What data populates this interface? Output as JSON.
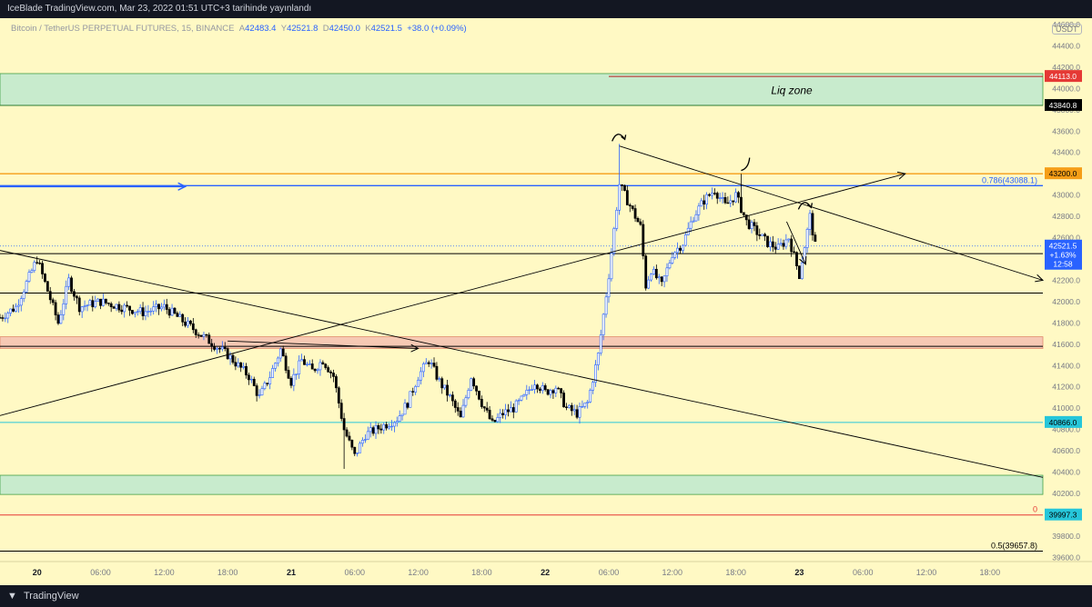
{
  "header": {
    "publisher": "IceBlade TradingView.com, Mar 23, 2022 01:51 UTC+3 tarihinde yayınlandı"
  },
  "legend": {
    "symbol": "Bitcoin / TetherUS PERPETUAL FUTURES, 15, BINANCE",
    "o_label": "A",
    "o": "42483.4",
    "h_label": "Y",
    "h": "42521.8",
    "l_label": "D",
    "l": "42450.0",
    "c_label": "K",
    "c": "42521.5",
    "change": "+38.0 (+0.09%)"
  },
  "currency": "USDT",
  "footer": {
    "brand": "TradingView"
  },
  "colors": {
    "background": "#fff9c4",
    "candle": "#2962ff",
    "green_zone": "#c8ebcd",
    "red_zone": "#f6c9b4",
    "orange_line": "#f59d17",
    "blue_line": "#2962ff",
    "red_line": "#e53935",
    "cyan_line": "#26c6da"
  },
  "chart_data": {
    "type": "candlestick",
    "symbol": "BTCUSDT Perpetual",
    "interval": "15",
    "y_range": [
      39560,
      44660
    ],
    "yticks": [
      39600,
      39800,
      40000,
      40200,
      40400,
      40600,
      40800,
      41000,
      41200,
      41400,
      41600,
      41800,
      42000,
      42200,
      42400,
      42600,
      42800,
      43000,
      43200,
      43400,
      43600,
      43800,
      44000,
      44200,
      44400,
      44600
    ],
    "x_ticks": [
      {
        "label": "20",
        "t": 0
      },
      {
        "label": "06:00",
        "t": 6
      },
      {
        "label": "12:00",
        "t": 12
      },
      {
        "label": "18:00",
        "t": 18
      },
      {
        "label": "21",
        "t": 24
      },
      {
        "label": "06:00",
        "t": 30
      },
      {
        "label": "12:00",
        "t": 36
      },
      {
        "label": "18:00",
        "t": 42
      },
      {
        "label": "22",
        "t": 48
      },
      {
        "label": "06:00",
        "t": 54
      },
      {
        "label": "12:00",
        "t": 60
      },
      {
        "label": "18:00",
        "t": 66
      },
      {
        "label": "23",
        "t": 72
      },
      {
        "label": "06:00",
        "t": 78
      },
      {
        "label": "12:00",
        "t": 84
      },
      {
        "label": "18:00",
        "t": 90
      }
    ],
    "x_range": [
      -3.5,
      95
    ],
    "last_bar_t": 73.5,
    "price_path": [
      [
        -3.5,
        41850
      ],
      [
        -2,
        41950
      ],
      [
        0,
        42400
      ],
      [
        1,
        42100
      ],
      [
        2,
        41800
      ],
      [
        3,
        42200
      ],
      [
        4,
        41950
      ],
      [
        6,
        42000
      ],
      [
        8,
        41950
      ],
      [
        10,
        41900
      ],
      [
        12,
        41950
      ],
      [
        14,
        41800
      ],
      [
        16,
        41650
      ],
      [
        18,
        41500
      ],
      [
        20,
        41300
      ],
      [
        21,
        41100
      ],
      [
        22,
        41300
      ],
      [
        23,
        41550
      ],
      [
        24,
        41250
      ],
      [
        25,
        41450
      ],
      [
        26,
        41350
      ],
      [
        27,
        41450
      ],
      [
        28,
        41300
      ],
      [
        29,
        40800
      ],
      [
        30,
        40550
      ],
      [
        31,
        40750
      ],
      [
        32,
        40800
      ],
      [
        33,
        40850
      ],
      [
        34,
        40900
      ],
      [
        35,
        41050
      ],
      [
        36,
        41300
      ],
      [
        37,
        41450
      ],
      [
        38,
        41250
      ],
      [
        39,
        41100
      ],
      [
        40,
        40900
      ],
      [
        41,
        41300
      ],
      [
        42,
        41050
      ],
      [
        43,
        40850
      ],
      [
        44,
        40950
      ],
      [
        45,
        41000
      ],
      [
        46,
        41100
      ],
      [
        47,
        41250
      ],
      [
        48,
        41150
      ],
      [
        49,
        41200
      ],
      [
        50,
        41000
      ],
      [
        51,
        40950
      ],
      [
        52,
        41050
      ],
      [
        53,
        41500
      ],
      [
        54,
        42250
      ],
      [
        55,
        43100
      ],
      [
        56,
        42900
      ],
      [
        57,
        42700
      ],
      [
        57.5,
        42150
      ],
      [
        58,
        42300
      ],
      [
        59,
        42150
      ],
      [
        60,
        42450
      ],
      [
        61,
        42550
      ],
      [
        62,
        42800
      ],
      [
        63,
        42950
      ],
      [
        64,
        43050
      ],
      [
        65,
        42900
      ],
      [
        66,
        43000
      ],
      [
        67,
        42750
      ],
      [
        68,
        42650
      ],
      [
        69,
        42550
      ],
      [
        70,
        42500
      ],
      [
        71,
        42600
      ],
      [
        72,
        42250
      ],
      [
        73,
        42800
      ],
      [
        73.5,
        42521.5
      ]
    ],
    "candles_note_events": [
      {
        "t": 29,
        "low": 40430
      },
      {
        "t": 55,
        "high": 43480
      },
      {
        "t": 66.5,
        "high": 43200
      },
      {
        "t": 72,
        "low": 42230
      }
    ],
    "zones": [
      {
        "kind": "green",
        "from": 43840.8,
        "to": 44140
      },
      {
        "kind": "salmon",
        "from": 41560,
        "to": 41670
      },
      {
        "kind": "green",
        "from": 40190,
        "to": 40370
      }
    ],
    "horizontal_lines": [
      {
        "price": 44113.0,
        "color": "#b71c1c",
        "from_t": 54,
        "label": "44113.0",
        "label_bg": "#e53935"
      },
      {
        "price": 43840.8,
        "color": "#2e7d32",
        "label": "43840.8",
        "label_bg": "#000000"
      },
      {
        "price": 43200.0,
        "color": "#f59d17",
        "label": "43200.0",
        "label_bg": "#f59d17",
        "label_fg": "#000000"
      },
      {
        "price": 43088.1,
        "color": "#2962ff",
        "fib_text": "0.786(43088.1)"
      },
      {
        "price": 42450,
        "color": "#000000"
      },
      {
        "price": 42080,
        "color": "#000000"
      },
      {
        "price": 41580,
        "color": "#000000"
      },
      {
        "price": 40866.0,
        "color": "#26c6da",
        "label": "40866.0",
        "label_bg": "#26c6da",
        "label_fg": "#000000"
      },
      {
        "price": 39997.3,
        "color": "#e53935",
        "label": "39997.3",
        "label_bg": "#26c6da",
        "label_fg": "#000000",
        "fib_text": "0"
      },
      {
        "price": 39657.8,
        "color": "#000000",
        "fib_text": "0.5(39657.8)"
      }
    ],
    "price_label": {
      "price": "42521.5",
      "change": "+1.63%",
      "countdown": "12:58",
      "bg": "#2962ff"
    },
    "trendlines": [
      {
        "from": [
          -3.5,
          42480
        ],
        "to": [
          95,
          40350
        ],
        "arrow": false
      },
      {
        "from": [
          -3.5,
          40930
        ],
        "to": [
          82,
          43200
        ],
        "arrow": true
      },
      {
        "from": [
          55,
          43460
        ],
        "to": [
          95,
          42200
        ],
        "arrow": true
      },
      {
        "from": [
          -3.5,
          43080
        ],
        "to": [
          14,
          43080
        ],
        "arrow": true,
        "color": "#2962ff"
      },
      {
        "from": [
          18,
          41630
        ],
        "to": [
          36,
          41560
        ],
        "arrow": true
      }
    ],
    "annotation": "Liq zone"
  }
}
